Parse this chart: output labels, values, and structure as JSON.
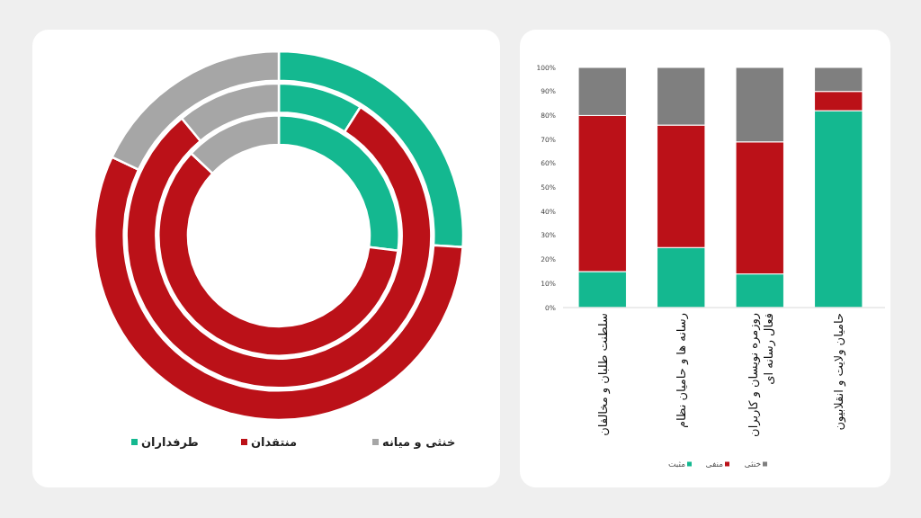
{
  "chart_data": [
    {
      "type": "donut",
      "categories": [
        "طرفداران",
        "منتقدان",
        "خنثی و میانه"
      ],
      "colors": [
        "#14b890",
        "#bb1118",
        "#a6a6a6"
      ],
      "legend": "bottom",
      "series": [
        {
          "values": [
            27,
            60,
            13
          ]
        },
        {
          "values": [
            9,
            80,
            11
          ]
        },
        {
          "values": [
            26,
            56,
            18
          ]
        }
      ]
    },
    {
      "type": "bar",
      "stacked": true,
      "categories": [
        "سلطنت طلبان و مخالفان",
        "رسانه ها و حامیان نظام",
        "روزمره نویسان و کاربران\nفعال رسانه ای",
        "حامیان ولایت و انقلابیون"
      ],
      "ylim": [
        0,
        100
      ],
      "yticks": [
        {
          "value": 0,
          "label": "0%"
        },
        {
          "value": 10,
          "label": "10%"
        },
        {
          "value": 20,
          "label": "20%"
        },
        {
          "value": 30,
          "label": "30%"
        },
        {
          "value": 40,
          "label": "40%"
        },
        {
          "value": 50,
          "label": "50%"
        },
        {
          "value": 60,
          "label": "60%"
        },
        {
          "value": 70,
          "label": "70%"
        },
        {
          "value": 80,
          "label": "80%"
        },
        {
          "value": 90,
          "label": "90%"
        },
        {
          "value": 100,
          "label": "100%"
        }
      ],
      "legend": "bottom",
      "series": [
        {
          "name": "مثبت",
          "color": "#14b890",
          "values": [
            15,
            25,
            14,
            82
          ]
        },
        {
          "name": "منفی",
          "color": "#bb1118",
          "values": [
            65,
            51,
            55,
            8
          ]
        },
        {
          "name": "خنثی",
          "color": "#7f7f7f",
          "values": [
            20,
            24,
            31,
            10
          ]
        }
      ]
    }
  ]
}
